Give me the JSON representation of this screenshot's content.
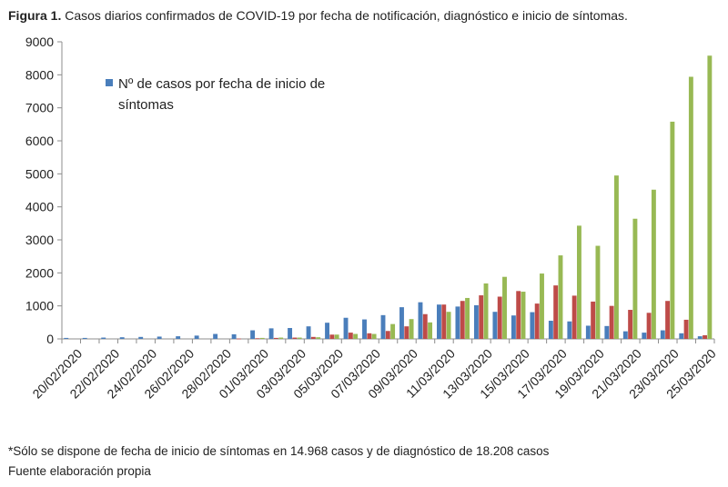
{
  "figure": {
    "title_bold": "Figura 1.",
    "title_text": "Casos diarios confirmados de COVID-19 por fecha de notificación, diagnóstico e inicio de síntomas.",
    "note": "*Sólo se dispone de fecha de inicio de síntomas en 14.968 casos y de diagnóstico de 18.208 casos",
    "source": "Fuente elaboración propia"
  },
  "colors": {
    "inicio": "#4a7ebb",
    "diagnostico": "#be4b48",
    "notificacion": "#98b954",
    "axis": "#8c8c8c"
  },
  "chart_data": {
    "type": "bar",
    "title": "Casos diarios confirmados de COVID-19 por fecha de notificación, diagnóstico e inicio de síntomas.",
    "xlabel": "",
    "ylabel": "",
    "ylim": [
      0,
      9000
    ],
    "yticks": [
      0,
      1000,
      2000,
      3000,
      4000,
      5000,
      6000,
      7000,
      8000,
      9000
    ],
    "grid": false,
    "legend_position": "top-left",
    "categories": [
      "20/02/2020",
      "21/02/2020",
      "22/02/2020",
      "23/02/2020",
      "24/02/2020",
      "25/02/2020",
      "26/02/2020",
      "27/02/2020",
      "28/02/2020",
      "29/02/2020",
      "01/03/2020",
      "02/03/2020",
      "03/03/2020",
      "04/03/2020",
      "05/03/2020",
      "06/03/2020",
      "07/03/2020",
      "08/03/2020",
      "09/03/2020",
      "10/03/2020",
      "11/03/2020",
      "12/03/2020",
      "13/03/2020",
      "14/03/2020",
      "15/03/2020",
      "16/03/2020",
      "17/03/2020",
      "18/03/2020",
      "19/03/2020",
      "20/03/2020",
      "21/03/2020",
      "22/03/2020",
      "23/03/2020",
      "24/03/2020",
      "25/03/2020"
    ],
    "tick_labels": [
      "20/02/2020",
      "22/02/2020",
      "24/02/2020",
      "26/02/2020",
      "28/02/2020",
      "01/03/2020",
      "03/03/2020",
      "05/03/2020",
      "07/03/2020",
      "09/03/2020",
      "11/03/2020",
      "13/03/2020",
      "15/03/2020",
      "17/03/2020",
      "19/03/2020",
      "21/03/2020",
      "23/03/2020",
      "25/03/2020"
    ],
    "series": [
      {
        "name": "Nº de casos por fecha de inicio de síntomas",
        "color": "#4a7ebb",
        "values": [
          30,
          30,
          40,
          50,
          60,
          70,
          80,
          100,
          150,
          140,
          260,
          320,
          330,
          380,
          490,
          640,
          590,
          720,
          960,
          1110,
          1040,
          980,
          1020,
          820,
          710,
          810,
          550,
          530,
          400,
          390,
          230,
          190,
          260,
          170,
          80
        ]
      },
      {
        "color": "#be4b48",
        "values": [
          0,
          0,
          0,
          0,
          0,
          0,
          0,
          0,
          0,
          10,
          20,
          30,
          40,
          60,
          130,
          190,
          170,
          240,
          380,
          750,
          1040,
          1150,
          1320,
          1280,
          1450,
          1070,
          1620,
          1310,
          1130,
          1000,
          880,
          790,
          1150,
          580,
          110
        ]
      },
      {
        "color": "#98b954",
        "values": [
          0,
          0,
          0,
          0,
          0,
          0,
          0,
          0,
          0,
          0,
          30,
          40,
          40,
          50,
          130,
          150,
          150,
          450,
          600,
          500,
          820,
          1240,
          1680,
          1880,
          1430,
          1980,
          2530,
          3430,
          2820,
          4950,
          3640,
          4520,
          6580,
          7940,
          8580
        ]
      }
    ]
  }
}
